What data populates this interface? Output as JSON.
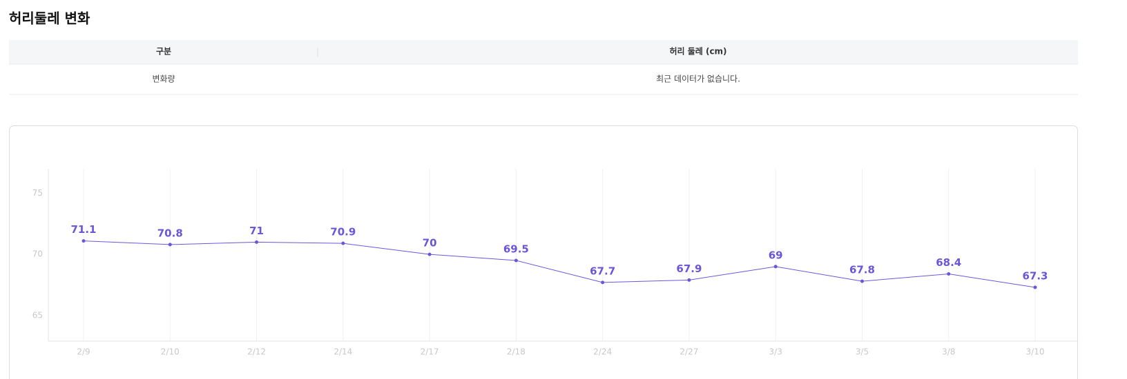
{
  "header": {
    "title": "허리둘레 변화"
  },
  "table": {
    "columns": [
      "구분",
      "허리 둘레 (cm)"
    ],
    "rows": [
      [
        "변화량",
        "최근 데이터가 없습니다."
      ]
    ]
  },
  "chart_data": {
    "type": "line",
    "categories": [
      "2/9",
      "2/10",
      "2/12",
      "2/14",
      "2/17",
      "2/18",
      "2/24",
      "2/27",
      "3/3",
      "3/5",
      "3/8",
      "3/10"
    ],
    "values": [
      71.1,
      70.8,
      71,
      70.9,
      70,
      69.5,
      67.7,
      67.9,
      69,
      67.8,
      68.4,
      67.3
    ],
    "color": "#6b55d9",
    "ylim": [
      62.9,
      77
    ],
    "yticks": [
      65,
      70,
      75
    ],
    "grid": true
  }
}
